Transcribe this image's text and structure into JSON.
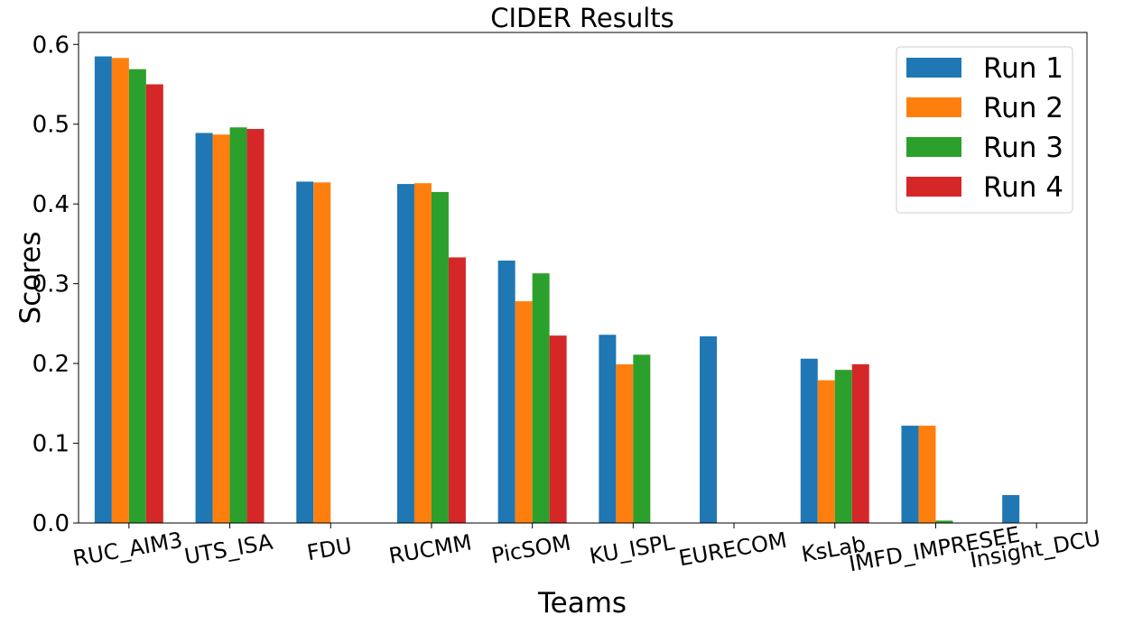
{
  "chart_data": {
    "type": "bar",
    "title": "CIDER Results",
    "xlabel": "Teams",
    "ylabel": "Scores",
    "ylim": [
      0,
      0.615
    ],
    "yticks": [
      "0.0",
      "0.1",
      "0.2",
      "0.3",
      "0.4",
      "0.5",
      "0.6"
    ],
    "ytick_values": [
      0,
      0.1,
      0.2,
      0.3,
      0.4,
      0.5,
      0.6
    ],
    "categories": [
      "RUC_AIM3",
      "UTS_ISA",
      "FDU",
      "RUCMM",
      "PicSOM",
      "KU_ISPL",
      "EURECOM",
      "KsLab",
      "IMFD_IMPRESEE",
      "Insight_DCU"
    ],
    "series": [
      {
        "name": "Run 1",
        "color": "#1f77b4",
        "values": [
          0.585,
          0.489,
          0.428,
          0.425,
          0.329,
          0.236,
          0.234,
          0.206,
          0.122,
          0.035
        ]
      },
      {
        "name": "Run 2",
        "color": "#ff7f0e",
        "values": [
          0.583,
          0.487,
          0.427,
          0.426,
          0.278,
          0.199,
          null,
          0.179,
          0.122,
          null
        ]
      },
      {
        "name": "Run 3",
        "color": "#2ca02c",
        "values": [
          0.569,
          0.496,
          null,
          0.415,
          0.313,
          0.211,
          null,
          0.192,
          0.003,
          null
        ]
      },
      {
        "name": "Run 4",
        "color": "#d62728",
        "values": [
          0.55,
          0.494,
          null,
          0.333,
          0.235,
          null,
          null,
          0.199,
          null,
          null
        ]
      }
    ],
    "legend_position": "top-right",
    "grid": false
  }
}
